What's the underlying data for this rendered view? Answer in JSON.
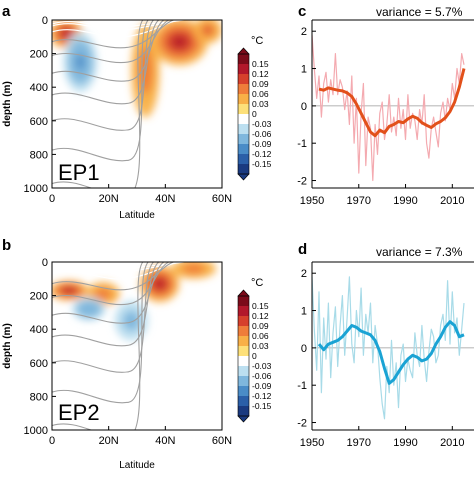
{
  "chart_data": [
    {
      "type": "heatmap",
      "panel_letter": "a",
      "label": "EP1",
      "xlabel": "Latitude",
      "ylabel": "depth (m)",
      "xlim": [
        0,
        60
      ],
      "ylim": [
        0,
        1000
      ],
      "xtick_labels": [
        "0",
        "20N",
        "40N",
        "60N"
      ],
      "ytick_labels": [
        "0",
        "200",
        "400",
        "600",
        "800",
        "1000"
      ],
      "ytick_values": [
        0,
        200,
        400,
        600,
        800,
        1000
      ],
      "anomaly_regions": [
        {
          "lat": 5,
          "depth": 80,
          "rx": 6,
          "ry": 90,
          "sign": "pos",
          "level": 0.9
        },
        {
          "lat": 10,
          "depth": 250,
          "rx": 6,
          "ry": 180,
          "sign": "neg",
          "level": 0.6
        },
        {
          "lat": 33,
          "depth": 300,
          "rx": 5,
          "ry": 280,
          "sign": "pos",
          "level": 0.5
        },
        {
          "lat": 45,
          "depth": 130,
          "rx": 10,
          "ry": 140,
          "sign": "pos",
          "level": 1.0
        },
        {
          "lat": 55,
          "depth": 60,
          "rx": 5,
          "ry": 80,
          "sign": "pos",
          "level": 0.7
        }
      ]
    },
    {
      "type": "heatmap",
      "panel_letter": "b",
      "label": "EP2",
      "xlabel": "Latitude",
      "ylabel": "depth (m)",
      "xlim": [
        0,
        60
      ],
      "ylim": [
        0,
        1000
      ],
      "xtick_labels": [
        "0",
        "20N",
        "40N",
        "60N"
      ],
      "ytick_labels": [
        "0",
        "200",
        "400",
        "600",
        "800",
        "1000"
      ],
      "ytick_values": [
        0,
        200,
        400,
        600,
        800,
        1000
      ],
      "anomaly_regions": [
        {
          "lat": 6,
          "depth": 170,
          "rx": 7,
          "ry": 60,
          "sign": "pos",
          "level": 0.9
        },
        {
          "lat": 18,
          "depth": 190,
          "rx": 6,
          "ry": 70,
          "sign": "pos",
          "level": 0.6
        },
        {
          "lat": 13,
          "depth": 280,
          "rx": 6,
          "ry": 70,
          "sign": "neg",
          "level": 0.4
        },
        {
          "lat": 38,
          "depth": 130,
          "rx": 7,
          "ry": 110,
          "sign": "pos",
          "level": 1.0
        },
        {
          "lat": 28,
          "depth": 350,
          "rx": 6,
          "ry": 120,
          "sign": "neg",
          "level": 0.3
        },
        {
          "lat": 50,
          "depth": 40,
          "rx": 8,
          "ry": 60,
          "sign": "pos",
          "level": 0.6
        }
      ]
    },
    {
      "type": "line",
      "panel_letter": "c",
      "variance_text": "variance = 5.7%",
      "xlim": [
        1950,
        2015
      ],
      "ylim": [
        -2.2,
        2.3
      ],
      "xtick_labels": [
        "1950",
        "1970",
        "1990",
        "2010"
      ],
      "xtick_values": [
        1950,
        1970,
        1990,
        2010
      ],
      "ytick_labels": [
        "-2",
        "-1",
        "0",
        "1",
        "2"
      ],
      "ytick_values": [
        -2,
        -1,
        0,
        1,
        2
      ],
      "series": [
        {
          "x": [
            1950,
            1951,
            1952,
            1953,
            1954,
            1955,
            1956,
            1957,
            1958,
            1959,
            1960,
            1961,
            1962,
            1963,
            1964,
            1965,
            1966,
            1967,
            1968,
            1969,
            1970,
            1971,
            1972,
            1973,
            1974,
            1975,
            1976,
            1977,
            1978,
            1979,
            1980,
            1981,
            1982,
            1983,
            1984,
            1985,
            1986,
            1987,
            1988,
            1989,
            1990,
            1991,
            1992,
            1993,
            1994,
            1995,
            1996,
            1997,
            1998,
            1999,
            2000,
            2001,
            2002,
            2003,
            2004,
            2005,
            2006,
            2007,
            2008,
            2009,
            2010,
            2011,
            2012,
            2013,
            2014,
            2015
          ],
          "values": [
            1.9,
            1.0,
            0.2,
            0.8,
            -0.3,
            0.6,
            0.9,
            0.1,
            0.7,
            0.3,
            1.4,
            0.3,
            0.7,
            0.5,
            -0.1,
            0.4,
            -0.5,
            0.8,
            -1.0,
            0.2,
            -1.8,
            -0.2,
            0.6,
            -1.6,
            -0.3,
            -0.6,
            -2.0,
            -0.5,
            -1.3,
            -0.2,
            0.1,
            -0.9,
            -0.5,
            0.3,
            -0.7,
            -0.3,
            -0.8,
            0.2,
            -0.6,
            -0.1,
            -0.9,
            0.3,
            -0.6,
            -0.2,
            -0.4,
            -0.9,
            -0.1,
            -0.5,
            0.3,
            -1.0,
            -1.4,
            -0.6,
            -0.3,
            -0.7,
            -1.1,
            -0.2,
            0.1,
            -0.4,
            0.2,
            -0.1,
            0.6,
            0.2,
            1.0,
            0.6,
            1.4,
            1.1
          ]
        },
        {
          "x": [
            1953,
            1955,
            1957,
            1959,
            1961,
            1963,
            1965,
            1967,
            1969,
            1971,
            1973,
            1975,
            1977,
            1979,
            1981,
            1983,
            1985,
            1987,
            1989,
            1991,
            1993,
            1995,
            1997,
            1999,
            2001,
            2003,
            2005,
            2007,
            2009,
            2011,
            2013,
            2015
          ],
          "values": [
            0.45,
            0.42,
            0.48,
            0.45,
            0.42,
            0.4,
            0.35,
            0.25,
            0.05,
            -0.2,
            -0.45,
            -0.7,
            -0.8,
            -0.65,
            -0.72,
            -0.55,
            -0.5,
            -0.42,
            -0.45,
            -0.35,
            -0.28,
            -0.33,
            -0.45,
            -0.52,
            -0.58,
            -0.48,
            -0.42,
            -0.32,
            -0.15,
            0.1,
            0.5,
            1.0
          ]
        }
      ],
      "series_colors": [
        "#f4aab0",
        "#e2501a"
      ]
    },
    {
      "type": "line",
      "panel_letter": "d",
      "variance_text": "variance = 7.3%",
      "xlim": [
        1950,
        2015
      ],
      "ylim": [
        -2.2,
        2.3
      ],
      "xtick_labels": [
        "1950",
        "1970",
        "1990",
        "2010"
      ],
      "xtick_values": [
        1950,
        1970,
        1990,
        2010
      ],
      "ytick_labels": [
        "-2",
        "-1",
        "0",
        "1",
        "2"
      ],
      "ytick_values": [
        -2,
        -1,
        0,
        1,
        2
      ],
      "series": [
        {
          "x": [
            1950,
            1951,
            1952,
            1953,
            1954,
            1955,
            1956,
            1957,
            1958,
            1959,
            1960,
            1961,
            1962,
            1963,
            1964,
            1965,
            1966,
            1967,
            1968,
            1969,
            1970,
            1971,
            1972,
            1973,
            1974,
            1975,
            1976,
            1977,
            1978,
            1979,
            1980,
            1981,
            1982,
            1983,
            1984,
            1985,
            1986,
            1987,
            1988,
            1989,
            1990,
            1991,
            1992,
            1993,
            1994,
            1995,
            1996,
            1997,
            1998,
            1999,
            2000,
            2001,
            2002,
            2003,
            2004,
            2005,
            2006,
            2007,
            2008,
            2009,
            2010,
            2011,
            2012,
            2013,
            2014,
            2015
          ],
          "values": [
            1.9,
            0.5,
            -0.6,
            1.5,
            -1.2,
            0.8,
            -0.3,
            1.2,
            -0.8,
            0.4,
            1.1,
            -0.5,
            0.6,
            1.4,
            -0.2,
            0.8,
            1.9,
            0.1,
            -0.4,
            1.0,
            0.3,
            1.6,
            -0.2,
            0.9,
            0.4,
            1.2,
            -0.4,
            0.6,
            0.1,
            -0.8,
            -1.5,
            -1.9,
            -0.5,
            -1.2,
            0.2,
            -1.0,
            -0.4,
            -1.6,
            -0.2,
            0.1,
            -0.9,
            -0.3,
            -0.6,
            -0.8,
            0.4,
            -0.2,
            -0.5,
            0.6,
            -0.3,
            -0.9,
            -0.1,
            0.5,
            0.3,
            -0.4,
            -0.2,
            0.6,
            0.9,
            0.2,
            1.8,
            0.1,
            1.5,
            0.4,
            0.8,
            -0.2,
            0.5,
            1.2
          ]
        },
        {
          "x": [
            1953,
            1955,
            1957,
            1959,
            1961,
            1963,
            1965,
            1967,
            1969,
            1971,
            1973,
            1975,
            1977,
            1979,
            1981,
            1983,
            1985,
            1987,
            1989,
            1991,
            1993,
            1995,
            1997,
            1999,
            2001,
            2003,
            2005,
            2007,
            2009,
            2011,
            2013,
            2015
          ],
          "values": [
            0.1,
            -0.05,
            0.1,
            0.15,
            0.2,
            0.3,
            0.45,
            0.6,
            0.55,
            0.45,
            0.4,
            0.35,
            0.2,
            -0.1,
            -0.55,
            -0.95,
            -0.85,
            -0.65,
            -0.45,
            -0.3,
            -0.2,
            -0.25,
            -0.35,
            -0.3,
            -0.15,
            0.1,
            0.3,
            0.55,
            0.7,
            0.6,
            0.3,
            0.35
          ]
        }
      ],
      "series_colors": [
        "#a8dbe8",
        "#1aa3d4"
      ]
    }
  ],
  "colorbar": {
    "unit": "°C",
    "tick_labels": [
      "0.15",
      "0.12",
      "0.09",
      "0.06",
      "0.03",
      "0",
      "-0.03",
      "-0.06",
      "-0.09",
      "-0.12",
      "-0.15"
    ],
    "colors": [
      "#7b0b1a",
      "#b2182b",
      "#d6402c",
      "#ef7d3a",
      "#f8b047",
      "#fde079",
      "#ffffff",
      "#bcdff0",
      "#7fb7dd",
      "#4a8cc7",
      "#2b5fa8",
      "#1a3a80"
    ]
  }
}
